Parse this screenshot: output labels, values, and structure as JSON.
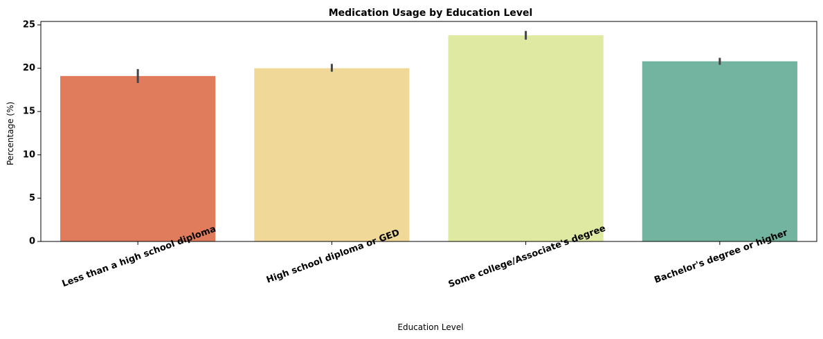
{
  "chart_data": {
    "type": "bar",
    "title": "Medication Usage by Education Level",
    "xlabel": "Education Level",
    "ylabel": "Percentage (%)",
    "ylim": [
      0,
      25.4
    ],
    "yticks": [
      0,
      5,
      10,
      15,
      20,
      25
    ],
    "grid": false,
    "categories": [
      "Less than a high school diploma",
      "High school diploma or GED",
      "Some college/Associate's degree",
      "Bachelor's degree or higher"
    ],
    "values": [
      19.1,
      20.0,
      23.8,
      20.8
    ],
    "error_low": [
      18.3,
      19.6,
      23.3,
      20.4
    ],
    "error_high": [
      19.9,
      20.5,
      24.3,
      21.2
    ],
    "colors": [
      "#e07b5b",
      "#f0d998",
      "#dfe9a2",
      "#73b4a1"
    ],
    "error_color": "#444444"
  }
}
